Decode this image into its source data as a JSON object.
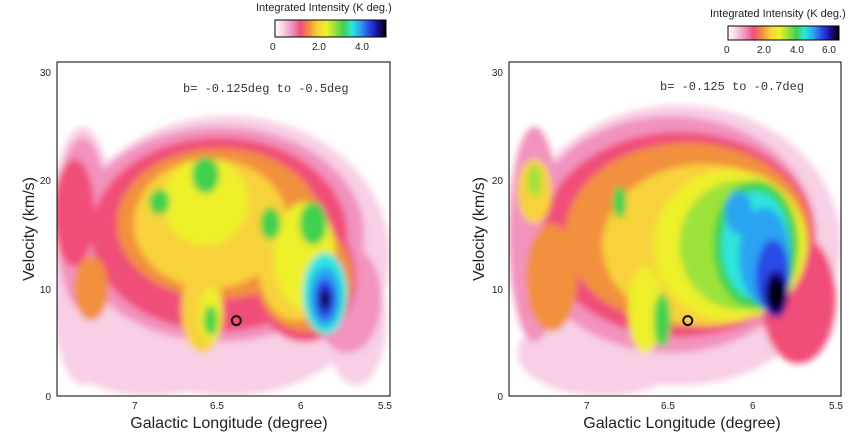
{
  "chart_data": [
    {
      "type": "heatmap",
      "title": "",
      "annotation": "b= -0.125deg to -0.5deg",
      "xlabel": "Galactic Longitude (degree)",
      "ylabel": "Velocity (km/s)",
      "xlim": [
        7.45,
        5.5
      ],
      "ylim": [
        0,
        31
      ],
      "xticks": [
        7,
        6.5,
        6,
        5.5
      ],
      "xtick_labels": [
        "7",
        "6.5",
        "6",
        "5.5"
      ],
      "yticks": [
        0,
        10,
        20,
        30
      ],
      "ytick_labels": [
        "0",
        "10",
        "20",
        "30"
      ],
      "marker": {
        "label": "o",
        "l": 6.4,
        "v": 7
      },
      "colorbar": {
        "title": "Integrated Intensity (K deg.)",
        "min": 0,
        "max": 5,
        "ticks": [
          0,
          2.0,
          4.0
        ],
        "tick_labels": [
          "0",
          "2.0",
          "4.0"
        ],
        "placement": "top-right"
      },
      "features": [
        {
          "l": 5.88,
          "v": 9.0,
          "peak": 5.0,
          "note": "peak intensity"
        },
        {
          "l": 5.95,
          "v": 16,
          "peak": 2.8
        },
        {
          "l": 6.2,
          "v": 16,
          "peak": 2.4
        },
        {
          "l": 6.58,
          "v": 20.5,
          "peak": 2.6
        },
        {
          "l": 6.85,
          "v": 18,
          "peak": 2.5
        },
        {
          "l": 6.55,
          "v": 7,
          "peak": 2.5
        },
        {
          "l": 7.25,
          "v": 10,
          "peak": 1.3
        }
      ]
    },
    {
      "type": "heatmap",
      "title": "",
      "annotation": "b= -0.125 to -0.7deg",
      "xlabel": "Galactic Longitude (degree)",
      "ylabel": "Velocity (km/s)",
      "xlim": [
        7.45,
        5.5
      ],
      "ylim": [
        0,
        31
      ],
      "xticks": [
        7,
        6.5,
        6,
        5.5
      ],
      "xtick_labels": [
        "7",
        "6.5",
        "6",
        "5.5"
      ],
      "yticks": [
        0,
        10,
        20,
        30
      ],
      "ytick_labels": [
        "0",
        "10",
        "20",
        "30"
      ],
      "marker": {
        "label": "o",
        "l": 6.4,
        "v": 7
      },
      "colorbar": {
        "title": "Integrated Intensity (K deg.)",
        "min": 0,
        "max": 6.5,
        "ticks": [
          0,
          2.0,
          4.0,
          6.0
        ],
        "tick_labels": [
          "0",
          "2.0",
          "4.0",
          "6.0"
        ],
        "placement": "top-right"
      },
      "features": [
        {
          "l": 5.88,
          "v": 9.5,
          "peak": 6.5,
          "note": "peak intensity"
        },
        {
          "l": 6.0,
          "v": 17,
          "peak": 4.3
        },
        {
          "l": 7.3,
          "v": 20,
          "peak": 2.4
        },
        {
          "l": 6.55,
          "v": 7,
          "peak": 3.0
        }
      ]
    }
  ],
  "colors": {
    "colormap": [
      "#ffffff",
      "#f8cfe4",
      "#f292bd",
      "#f04e78",
      "#f2903e",
      "#f8d23a",
      "#eef02c",
      "#9de23a",
      "#3fd14e",
      "#2ee6dc",
      "#2aa4f2",
      "#2c48e6",
      "#1c0f9a",
      "#000000"
    ]
  }
}
